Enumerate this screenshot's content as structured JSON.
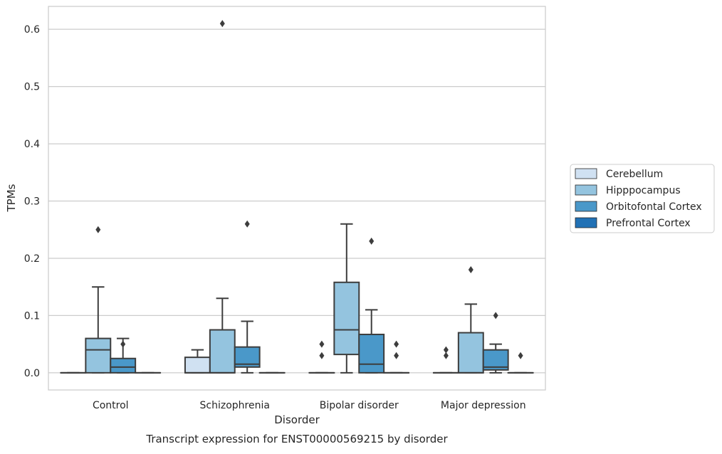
{
  "chart_data": {
    "type": "box",
    "caption": "Transcript expression for ENST00000569215 by disorder",
    "xlabel": "Disorder",
    "ylabel": "TPMs",
    "categories": [
      "Control",
      "Schizophrenia",
      "Bipolar disorder",
      "Major depression"
    ],
    "ylim": [
      -0.03,
      0.64
    ],
    "yticks": [
      0.0,
      0.1,
      0.2,
      0.3,
      0.4,
      0.5,
      0.6
    ],
    "ytick_labels": [
      "0.0",
      "0.1",
      "0.2",
      "0.3",
      "0.4",
      "0.5",
      "0.6"
    ],
    "grid": true,
    "legend_position": "right",
    "series": [
      {
        "name": "Cerebellum",
        "color": "#d0e1f2",
        "boxes": [
          {
            "category": "Control",
            "q1": 0,
            "median": 0,
            "q3": 0,
            "whisker_low": 0,
            "whisker_high": 0,
            "outliers": []
          },
          {
            "category": "Schizophrenia",
            "q1": 0,
            "median": 0,
            "q3": 0.027,
            "whisker_low": 0,
            "whisker_high": 0.04,
            "outliers": []
          },
          {
            "category": "Bipolar disorder",
            "q1": 0,
            "median": 0,
            "q3": 0,
            "whisker_low": 0,
            "whisker_high": 0,
            "outliers": [
              0.05,
              0.03
            ]
          },
          {
            "category": "Major depression",
            "q1": 0,
            "median": 0,
            "q3": 0,
            "whisker_low": 0,
            "whisker_high": 0,
            "outliers": [
              0.04,
              0.03
            ]
          }
        ]
      },
      {
        "name": "Hipppocampus",
        "color": "#94c4df",
        "boxes": [
          {
            "category": "Control",
            "q1": 0,
            "median": 0.04,
            "q3": 0.06,
            "whisker_low": 0,
            "whisker_high": 0.15,
            "outliers": [
              0.25
            ]
          },
          {
            "category": "Schizophrenia",
            "q1": 0,
            "median": 0,
            "q3": 0.075,
            "whisker_low": 0,
            "whisker_high": 0.13,
            "outliers": [
              0.61
            ]
          },
          {
            "category": "Bipolar disorder",
            "q1": 0.032,
            "median": 0.075,
            "q3": 0.158,
            "whisker_low": 0,
            "whisker_high": 0.26,
            "outliers": []
          },
          {
            "category": "Major depression",
            "q1": 0,
            "median": 0,
            "q3": 0.07,
            "whisker_low": 0,
            "whisker_high": 0.12,
            "outliers": [
              0.18
            ]
          }
        ]
      },
      {
        "name": "Orbitofontal Cortex",
        "color": "#4a98c9",
        "boxes": [
          {
            "category": "Control",
            "q1": 0,
            "median": 0.01,
            "q3": 0.025,
            "whisker_low": 0,
            "whisker_high": 0.06,
            "outliers": [
              0.05
            ]
          },
          {
            "category": "Schizophrenia",
            "q1": 0.01,
            "median": 0.015,
            "q3": 0.045,
            "whisker_low": 0,
            "whisker_high": 0.09,
            "outliers": [
              0.26
            ]
          },
          {
            "category": "Bipolar disorder",
            "q1": 0,
            "median": 0.015,
            "q3": 0.067,
            "whisker_low": 0,
            "whisker_high": 0.11,
            "outliers": [
              0.23
            ]
          },
          {
            "category": "Major depression",
            "q1": 0.005,
            "median": 0.01,
            "q3": 0.04,
            "whisker_low": 0,
            "whisker_high": 0.05,
            "outliers": [
              0.1
            ]
          }
        ]
      },
      {
        "name": "Prefrontal Cortex",
        "color": "#2171b5",
        "boxes": [
          {
            "category": "Control",
            "q1": 0,
            "median": 0,
            "q3": 0,
            "whisker_low": 0,
            "whisker_high": 0,
            "outliers": []
          },
          {
            "category": "Schizophrenia",
            "q1": 0,
            "median": 0,
            "q3": 0,
            "whisker_low": 0,
            "whisker_high": 0,
            "outliers": []
          },
          {
            "category": "Bipolar disorder",
            "q1": 0,
            "median": 0,
            "q3": 0,
            "whisker_low": 0,
            "whisker_high": 0,
            "outliers": [
              0.05,
              0.03
            ]
          },
          {
            "category": "Major depression",
            "q1": 0,
            "median": 0,
            "q3": 0,
            "whisker_low": 0,
            "whisker_high": 0,
            "outliers": [
              0.03
            ]
          }
        ]
      }
    ]
  }
}
